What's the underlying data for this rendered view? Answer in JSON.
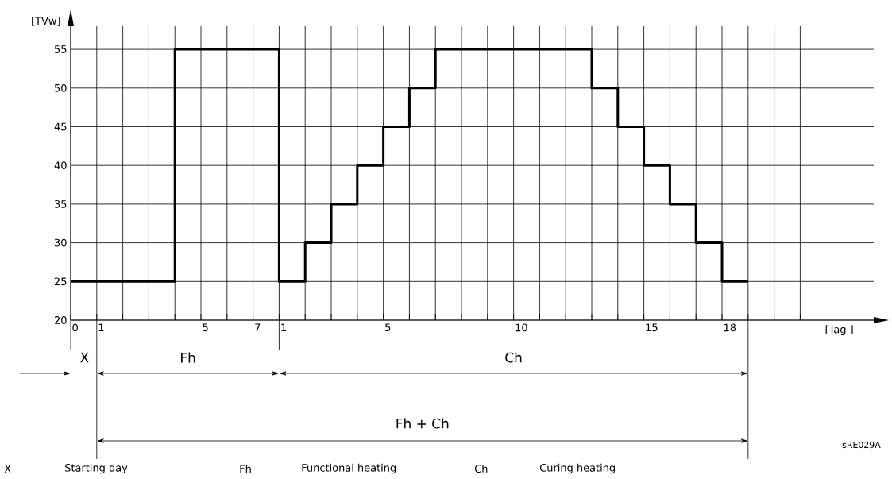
{
  "chart_data": {
    "type": "step",
    "xlabel": "[Tag ]",
    "ylabel": "[TVw]",
    "color": "#000000",
    "grid": true,
    "categories": [
      "0",
      "1",
      null,
      null,
      null,
      "5",
      null,
      "7",
      "1",
      null,
      null,
      null,
      "5",
      null,
      null,
      null,
      null,
      "10",
      null,
      null,
      null,
      null,
      "15",
      null,
      null,
      "18",
      null,
      null,
      null
    ],
    "values": [
      25,
      25,
      25,
      25,
      55,
      55,
      55,
      55,
      25,
      30,
      35,
      40,
      45,
      50,
      55,
      55,
      55,
      55,
      55,
      55,
      50,
      45,
      40,
      35,
      30,
      25,
      25,
      null,
      null
    ],
    "ylim": [
      20,
      58
    ],
    "yticks": [
      20,
      25,
      30,
      35,
      40,
      45,
      50,
      55
    ],
    "annotations": [
      "X",
      "Fh",
      "Ch",
      "Fh + Ch",
      "X",
      "Starting day",
      "Fh",
      "Functional heating",
      "Ch",
      "Curing heating",
      "sRE029A"
    ]
  }
}
